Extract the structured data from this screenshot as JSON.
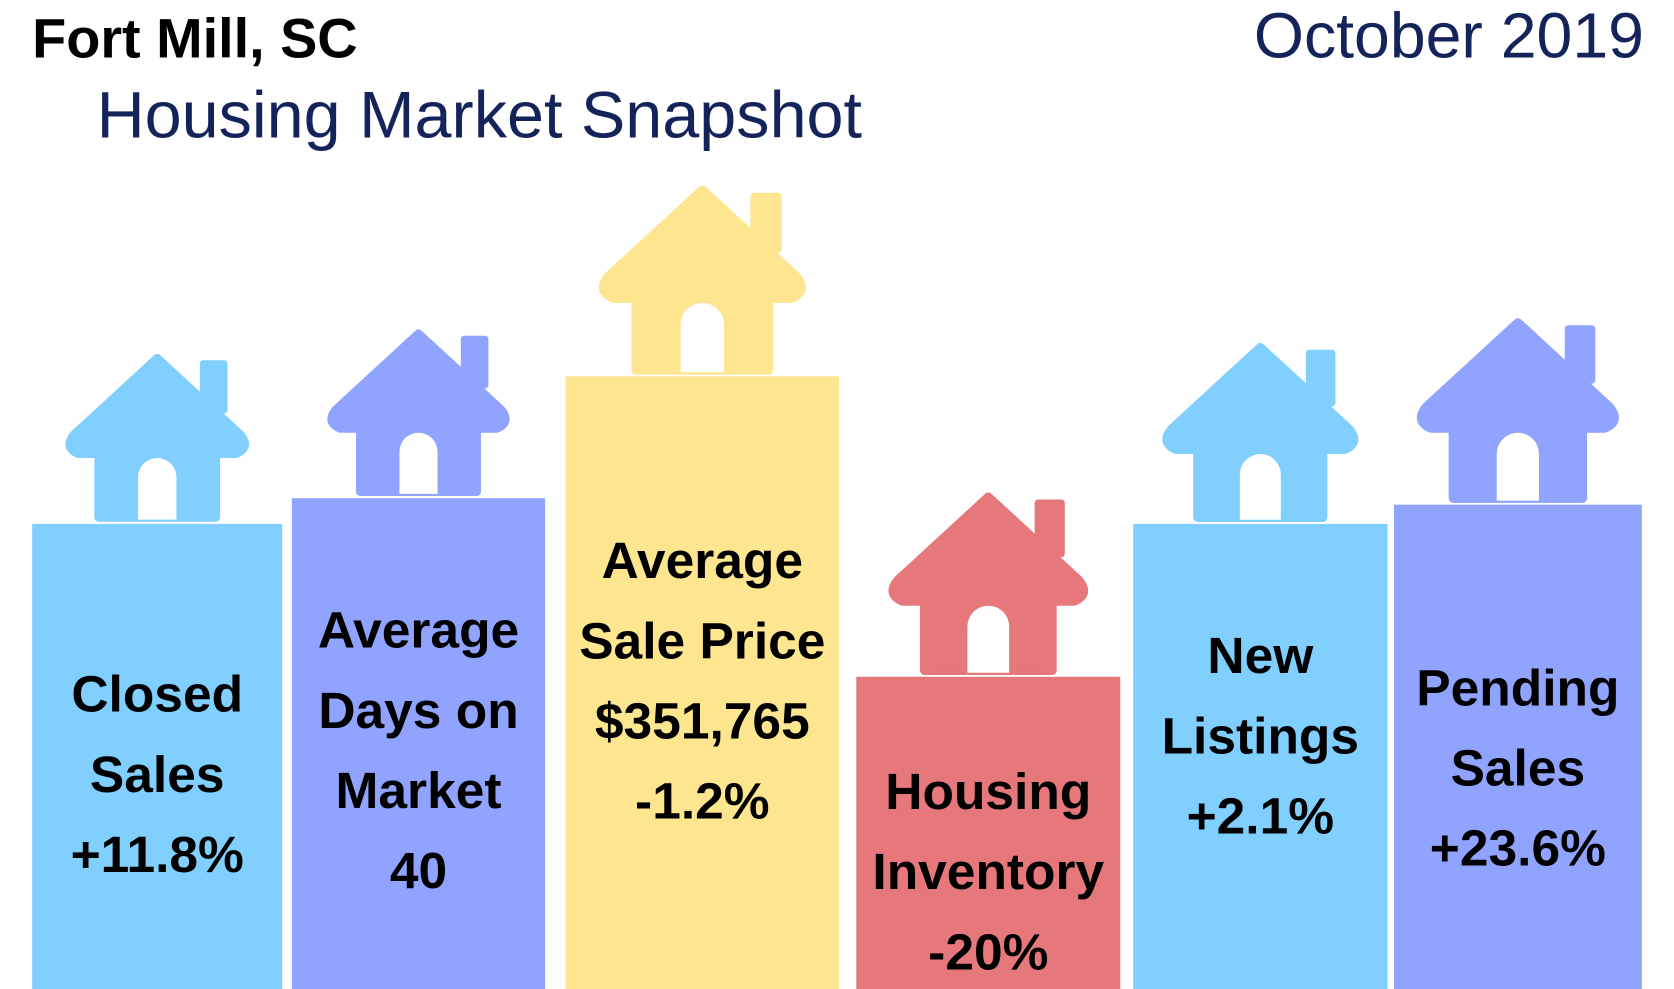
{
  "header": {
    "location": "Fort Mill, SC",
    "subtitle": "Housing Market Snapshot",
    "date": "October 2019"
  },
  "cards": [
    {
      "label_lines": [
        "Closed",
        "Sales"
      ],
      "value": "+11.8%",
      "color": "#80cfff"
    },
    {
      "label_lines": [
        "Average",
        "Days on",
        "Market"
      ],
      "value": "40",
      "color": "#8fa3ff"
    },
    {
      "label_lines": [
        "Average",
        "Sale Price",
        "$351,765"
      ],
      "value": "-1.2%",
      "color": "#fde68f"
    },
    {
      "label_lines": [
        "Housing",
        "Inventory"
      ],
      "value": "-20%",
      "color": "#e6777b"
    },
    {
      "label_lines": [
        "New",
        "Listings"
      ],
      "value": "+2.1%",
      "color": "#80cfff"
    },
    {
      "label_lines": [
        "Pending",
        "Sales"
      ],
      "value": "+23.6%",
      "color": "#8fa3ff"
    }
  ]
}
